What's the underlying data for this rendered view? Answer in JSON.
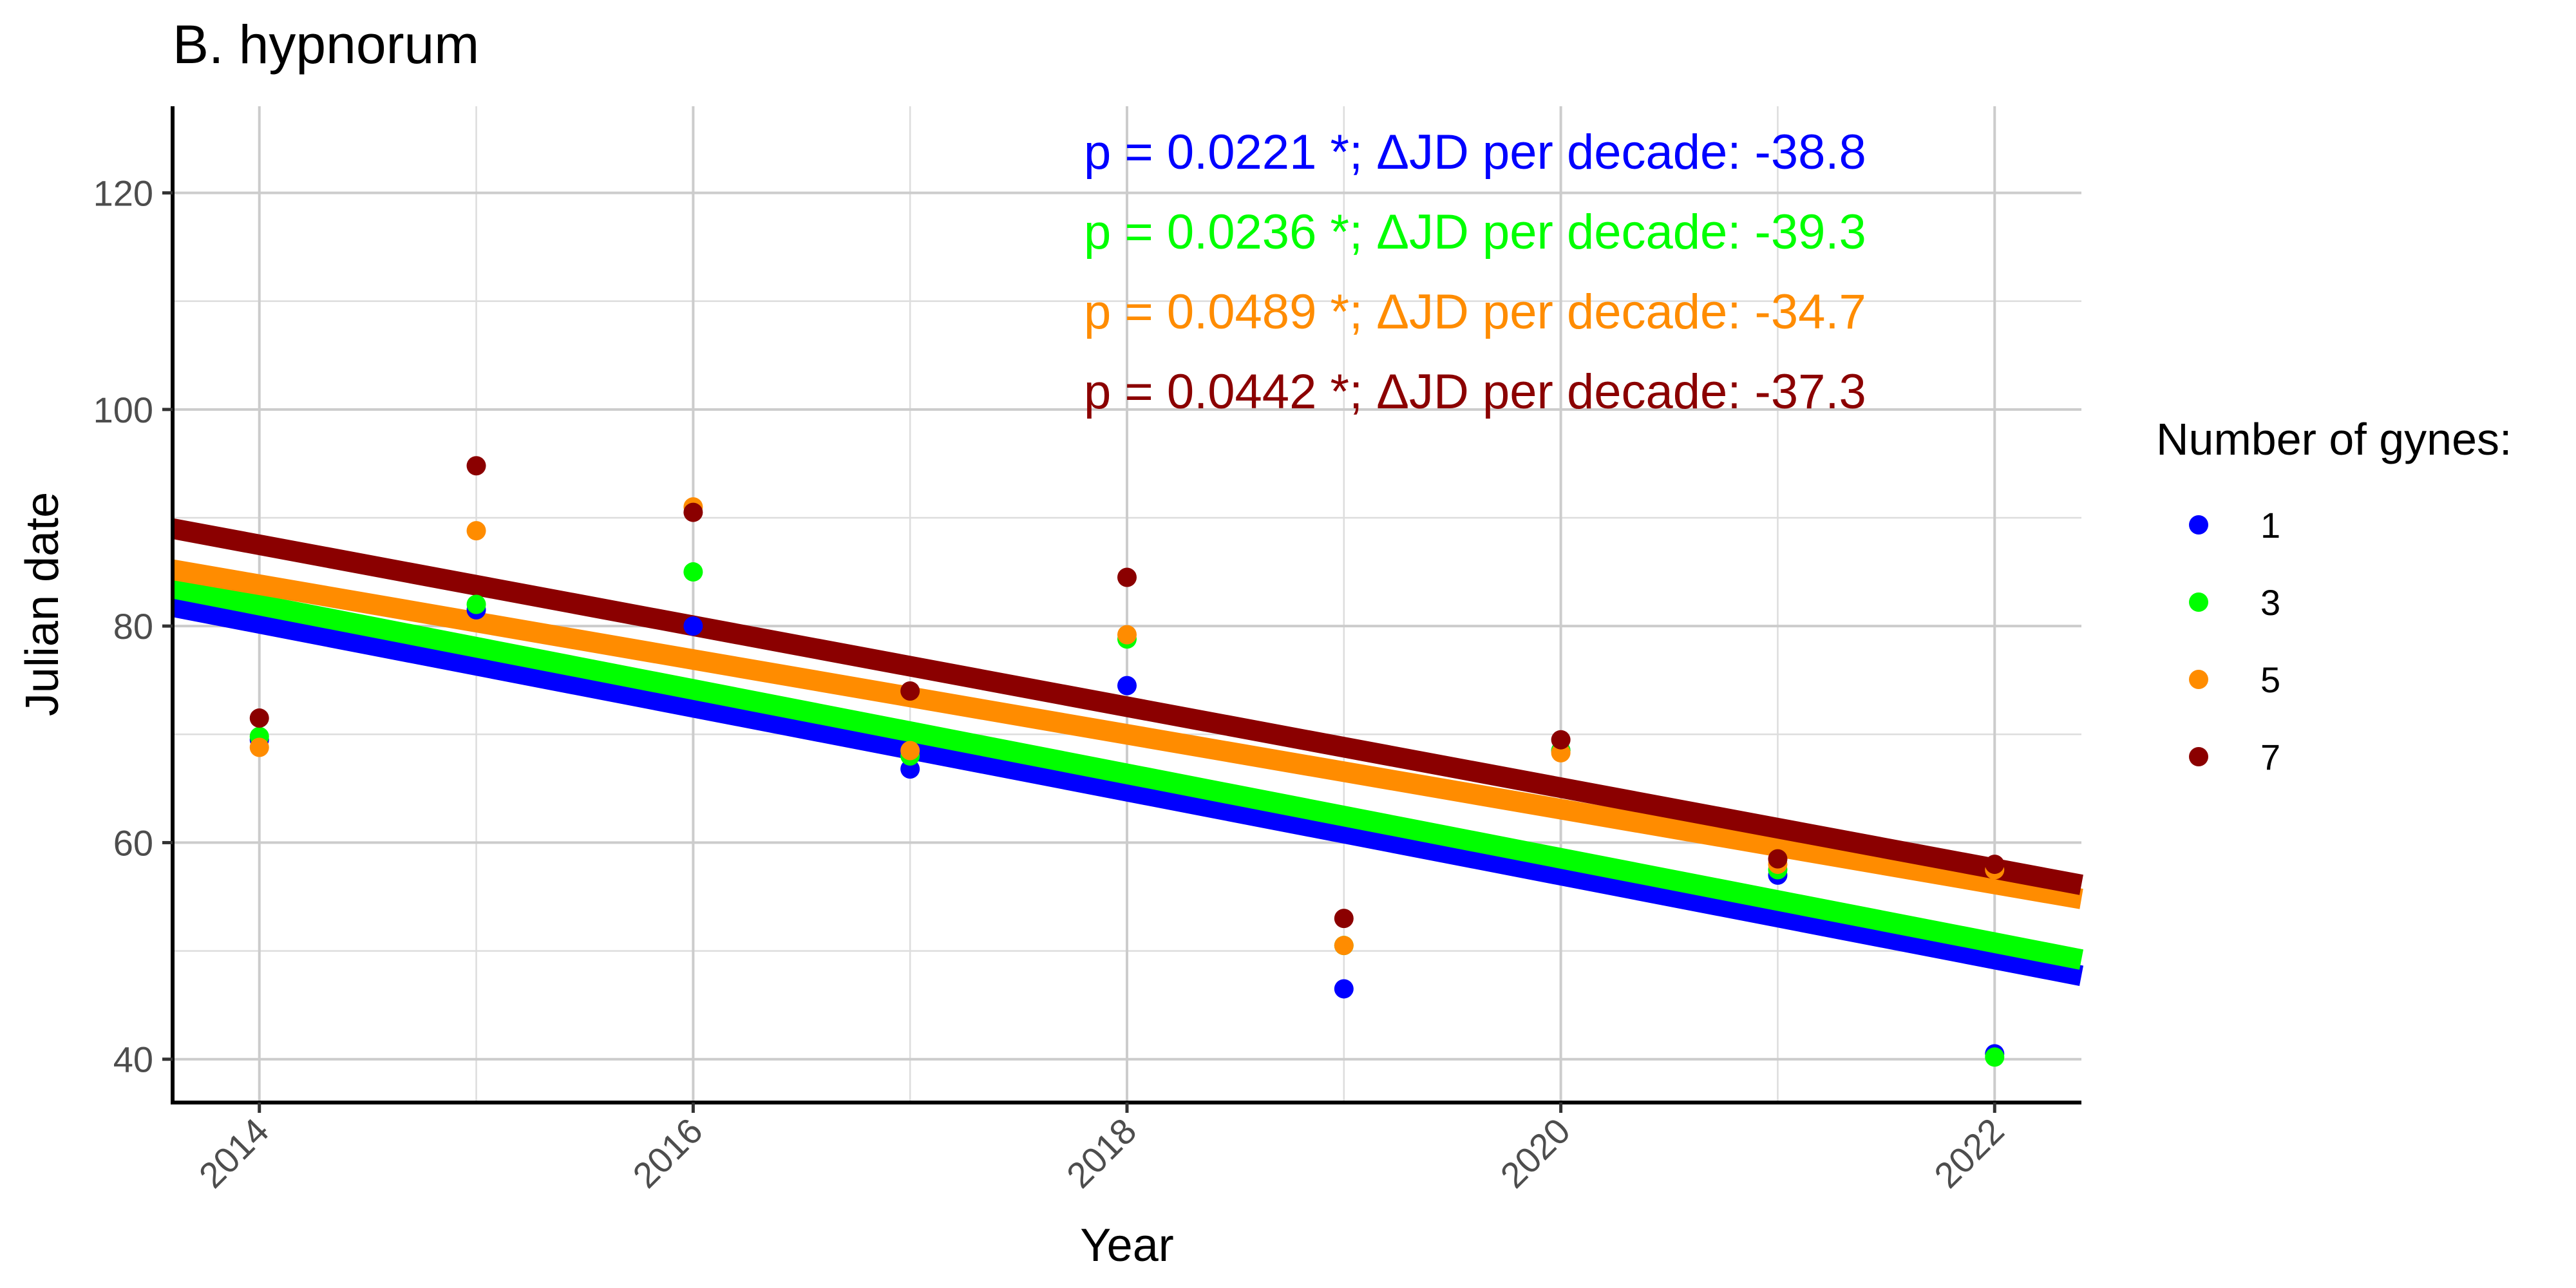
{
  "chart_data": {
    "type": "scatter",
    "title": "B. hypnorum",
    "xlabel": "Year",
    "ylabel": "Julian date",
    "xlim": [
      2013.6,
      2022.4
    ],
    "ylim": [
      36,
      128
    ],
    "x_ticks": [
      2014,
      2016,
      2018,
      2020,
      2022
    ],
    "y_ticks": [
      40,
      60,
      80,
      100,
      120
    ],
    "grid": true,
    "legend_title": "Number of gynes:",
    "legend_position": "right",
    "series": [
      {
        "name": "1",
        "color": "#0000ff",
        "x": [
          2014,
          2015,
          2016,
          2017,
          2018,
          2019,
          2020,
          2021,
          2022
        ],
        "y": [
          69.5,
          81.5,
          80,
          66.8,
          74.5,
          46.5,
          68.5,
          57,
          40.5
        ],
        "fit": {
          "x": [
            2013.6,
            2022.4
          ],
          "y": [
            81.8,
            47.7
          ]
        },
        "annotation": "p = 0.0221 *; ΔJD per decade: -38.8"
      },
      {
        "name": "3",
        "color": "#00ff00",
        "x": [
          2014,
          2015,
          2016,
          2017,
          2018,
          2019,
          2020,
          2021,
          2022
        ],
        "y": [
          69.8,
          82,
          85,
          68,
          78.8,
          50.5,
          68.5,
          57.5,
          40.2
        ],
        "fit": {
          "x": [
            2013.6,
            2022.4
          ],
          "y": [
            83.5,
            49.2
          ]
        },
        "annotation": "p = 0.0236 *; ΔJD per decade: -39.3"
      },
      {
        "name": "5",
        "color": "#ff8c00",
        "x": [
          2014,
          2015,
          2016,
          2017,
          2018,
          2019,
          2020,
          2021,
          2022
        ],
        "y": [
          68.8,
          88.8,
          91,
          68.5,
          79.2,
          50.5,
          68.3,
          58,
          57.5
        ],
        "fit": {
          "x": [
            2013.6,
            2022.4
          ],
          "y": [
            85.2,
            54.8
          ]
        },
        "annotation": "p = 0.0489 *; ΔJD per decade: -34.7"
      },
      {
        "name": "7",
        "color": "#8b0000",
        "x": [
          2014,
          2015,
          2016,
          2017,
          2018,
          2019,
          2020,
          2021,
          2022
        ],
        "y": [
          71.5,
          94.8,
          90.5,
          74,
          84.5,
          53,
          69.5,
          58.5,
          58
        ],
        "fit": {
          "x": [
            2013.6,
            2022.4
          ],
          "y": [
            89.0,
            56.1
          ]
        },
        "annotation": "p = 0.0442 *; ΔJD per decade: -37.3"
      }
    ]
  }
}
